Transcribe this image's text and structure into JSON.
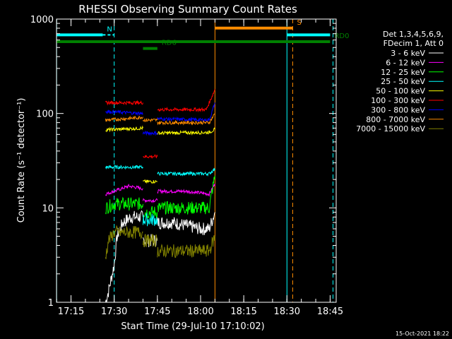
{
  "chart_data": {
    "type": "line",
    "title": "RHESSI Observing Summary Count Rates",
    "xlabel": "Start Time (29-Jul-10 17:10:02)",
    "ylabel": "Count Rate (s⁻¹ detector⁻¹)",
    "y_scale": "log",
    "ylim": [
      1,
      1000
    ],
    "xlim_minutes": [
      17.166,
      18.785
    ],
    "x_ticks": [
      "17:15",
      "17:30",
      "17:45",
      "18:00",
      "18:15",
      "18:30",
      "18:45"
    ],
    "y_ticks": [
      "1",
      "10",
      "100",
      "1000"
    ],
    "legend_header": [
      "Det 1,3,4,5,6,9,",
      "FDecim 1, Att 0"
    ],
    "legend_position": "top-right",
    "series": [
      {
        "name": "3 - 6 keV",
        "color": "#ffffff",
        "segments": [
          {
            "x": [
              "17:27",
              "17:28",
              "17:29",
              "17:30",
              "17:31",
              "17:33",
              "17:36",
              "17:40"
            ],
            "y": [
              1,
              1.3,
              1.8,
              2.5,
              5,
              7,
              8,
              8
            ]
          },
          {
            "x": [
              "17:40",
              "17:45"
            ],
            "y": [
              4.5,
              4.5
            ]
          },
          {
            "x": [
              "17:45",
              "17:50",
              "17:55",
              "18:00",
              "18:03",
              "18:05"
            ],
            "y": [
              7,
              7,
              6.5,
              6,
              6,
              9
            ]
          }
        ]
      },
      {
        "name": "6 - 12 keV",
        "color": "#ff00ff",
        "segments": [
          {
            "x": [
              "17:27",
              "17:30",
              "17:35",
              "17:40"
            ],
            "y": [
              14,
              15,
              17,
              16
            ]
          },
          {
            "x": [
              "17:40",
              "17:45"
            ],
            "y": [
              12,
              12
            ]
          },
          {
            "x": [
              "17:45",
              "17:55",
              "18:03",
              "18:05"
            ],
            "y": [
              15,
              15,
              14,
              18
            ]
          }
        ]
      },
      {
        "name": "12 - 25 keV",
        "color": "#00ff00",
        "segments": [
          {
            "x": [
              "17:27",
              "17:30",
              "17:35",
              "17:40"
            ],
            "y": [
              10,
              11,
              11,
              11
            ]
          },
          {
            "x": [
              "17:40",
              "17:45"
            ],
            "y": [
              9,
              9
            ]
          },
          {
            "x": [
              "17:45",
              "17:55",
              "18:03",
              "18:05"
            ],
            "y": [
              10,
              10,
              10,
              22
            ]
          }
        ]
      },
      {
        "name": "25 - 50 keV",
        "color": "#00ffff",
        "segments": [
          {
            "x": [
              "17:27",
              "17:40"
            ],
            "y": [
              27,
              27
            ]
          },
          {
            "x": [
              "17:40",
              "17:45"
            ],
            "y": [
              7.5,
              7.5
            ]
          },
          {
            "x": [
              "17:45",
              "18:03",
              "18:05"
            ],
            "y": [
              23,
              23,
              26
            ]
          }
        ]
      },
      {
        "name": "50 - 100 keV",
        "color": "#ffff00",
        "segments": [
          {
            "x": [
              "17:27",
              "17:40"
            ],
            "y": [
              67,
              70
            ]
          },
          {
            "x": [
              "17:40",
              "17:45"
            ],
            "y": [
              19,
              19
            ]
          },
          {
            "x": [
              "17:45",
              "18:03",
              "18:05"
            ],
            "y": [
              62,
              63,
              68
            ]
          }
        ]
      },
      {
        "name": "100 - 300 keV",
        "color": "#ff0000",
        "segments": [
          {
            "x": [
              "17:27",
              "17:40"
            ],
            "y": [
              130,
              130
            ]
          },
          {
            "x": [
              "17:40",
              "17:45"
            ],
            "y": [
              35,
              35
            ]
          },
          {
            "x": [
              "17:45",
              "18:02",
              "18:05"
            ],
            "y": [
              110,
              110,
              180
            ]
          }
        ]
      },
      {
        "name": "300 - 800 keV",
        "color": "#0000ff",
        "segments": [
          {
            "x": [
              "17:27",
              "17:40"
            ],
            "y": [
              105,
              100
            ]
          },
          {
            "x": [
              "17:40",
              "17:45"
            ],
            "y": [
              62,
              62
            ]
          },
          {
            "x": [
              "17:45",
              "18:03",
              "18:05"
            ],
            "y": [
              88,
              85,
              130
            ]
          }
        ]
      },
      {
        "name": "800 - 7000 keV",
        "color": "#ff8c00",
        "segments": [
          {
            "x": [
              "17:27",
              "17:38",
              "17:40"
            ],
            "y": [
              85,
              90,
              92
            ]
          },
          {
            "x": [
              "17:40",
              "17:45"
            ],
            "y": [
              85,
              85
            ]
          },
          {
            "x": [
              "17:45",
              "18:03",
              "18:05"
            ],
            "y": [
              80,
              80,
              100
            ]
          }
        ]
      },
      {
        "name": "7000 - 15000 keV",
        "color": "#808000",
        "segments": [
          {
            "x": [
              "17:27",
              "17:28",
              "17:30",
              "17:40"
            ],
            "y": [
              3,
              4.5,
              5.5,
              5.5
            ]
          },
          {
            "x": [
              "17:40",
              "17:45"
            ],
            "y": [
              4.5,
              4.5
            ]
          },
          {
            "x": [
              "17:45",
              "18:03",
              "18:05"
            ],
            "y": [
              3.5,
              3.5,
              5
            ]
          }
        ]
      }
    ],
    "annotations": {
      "flags": [
        {
          "label": "N",
          "color": "#00ffff",
          "x_start": "17:10",
          "x_end": "17:26",
          "dashed_to": "17:30",
          "level": 0.93
        },
        {
          "label": "",
          "color": "#00ffff",
          "x_start": "18:30",
          "x_end": "18:45",
          "level": 0.93
        },
        {
          "label": "S",
          "color": "#ff8c00",
          "x_start": "18:05",
          "x_end": "18:32",
          "level": 0.96
        },
        {
          "label": "RD0",
          "color": "#008000",
          "x_start": "17:10",
          "x_end": "18:45",
          "level": 0.9
        },
        {
          "label": "RD6",
          "color": "#008000",
          "x_start": "17:40",
          "x_end": "17:45",
          "level": 0.87
        }
      ],
      "vlines": [
        {
          "x": "17:10",
          "color": "#00ffff",
          "style": "solid"
        },
        {
          "x": "17:30",
          "color": "#00ffff",
          "style": "dashed"
        },
        {
          "x": "18:05",
          "color": "#ff8c00",
          "style": "solid"
        },
        {
          "x": "18:30",
          "color": "#00ffff",
          "style": "solid"
        },
        {
          "x": "18:32",
          "color": "#ff8c00",
          "style": "dashed"
        },
        {
          "x": "18:46",
          "color": "#00ffff",
          "style": "dashed"
        }
      ]
    }
  },
  "footer": {
    "timestamp": "15-Oct-2021 18:22"
  }
}
